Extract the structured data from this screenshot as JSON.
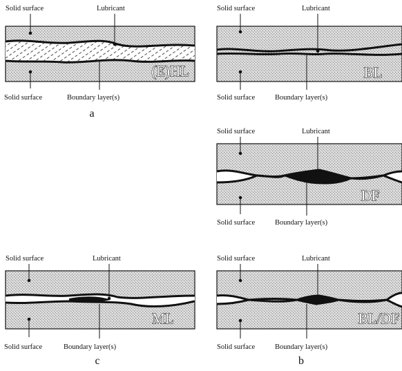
{
  "panels": {
    "ehl": {
      "regime": "(E)HL",
      "top_left": "Solid surface",
      "top_right": "Lubricant",
      "bottom_left": "Solid surface",
      "bottom_right": "Boundary layer(s)"
    },
    "bl": {
      "regime": "BL",
      "top_left": "Solid surface",
      "top_right": "Lubricant",
      "bottom_left": "Solid surface",
      "bottom_right": "Boundary layer(s)"
    },
    "df": {
      "regime": "DF",
      "top_left": "Solid surface",
      "top_right": "Lubricant",
      "bottom_left": "Solid surface",
      "bottom_right": "Boundary layer(s)"
    },
    "ml": {
      "regime": "ML",
      "top_left": "Solid surface",
      "top_right": "Lubricant",
      "bottom_left": "Solid surface",
      "bottom_right": "Boundary layer(s)"
    },
    "bldf": {
      "regime": "BL/DF",
      "top_left": "Solid surface",
      "top_right": "Lubricant",
      "bottom_left": "Solid surface",
      "bottom_right": "Boundary layer(s)"
    }
  },
  "captions": {
    "a": "a",
    "b": "b",
    "c": "c"
  }
}
